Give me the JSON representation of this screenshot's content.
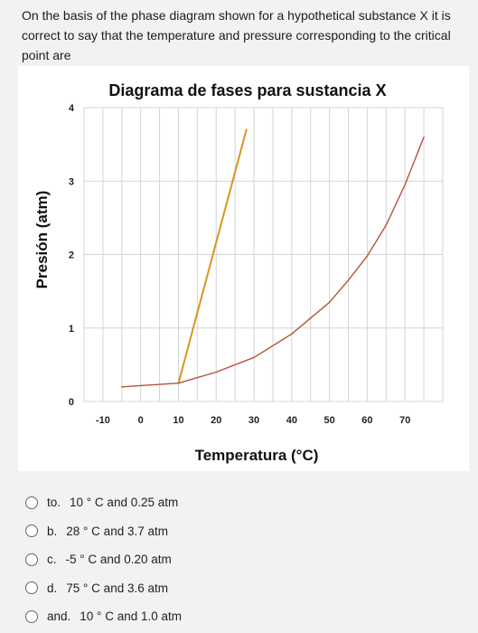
{
  "question": {
    "text": "On the basis of the phase diagram shown for a hypothetical substance X it is correct to say that the temperature and pressure corresponding to the critical point are"
  },
  "chart_data": {
    "type": "line",
    "title": "Diagrama de fases para sustancia X",
    "xlabel": "Temperatura (°C)",
    "ylabel": "Presión (atm)",
    "x_ticks": [
      "-10",
      "0",
      "10",
      "20",
      "30",
      "40",
      "50",
      "60",
      "70"
    ],
    "y_ticks": [
      "0",
      "1",
      "2",
      "3",
      "4"
    ],
    "xlim": [
      -15,
      80
    ],
    "ylim": [
      0,
      4
    ],
    "grid": true,
    "series": [
      {
        "color": "#d9951c",
        "x": [
          10,
          28
        ],
        "y": [
          0.25,
          3.7
        ]
      },
      {
        "color": "#b5523a",
        "x": [
          -5,
          10,
          20,
          30,
          40,
          50,
          55,
          60,
          65,
          70,
          75
        ],
        "y": [
          0.2,
          0.25,
          0.4,
          0.6,
          0.92,
          1.35,
          1.65,
          1.98,
          2.4,
          2.95,
          3.6
        ]
      }
    ]
  },
  "options": [
    {
      "letter": "to.",
      "text": "10 ° C and 0.25 atm"
    },
    {
      "letter": "b.",
      "text": "28 ° C and 3.7 atm"
    },
    {
      "letter": "c.",
      "text": "-5 ° C and 0.20 atm"
    },
    {
      "letter": "d.",
      "text": "75 ° C and 3.6 atm"
    },
    {
      "letter": "and.",
      "text": "10 ° C and 1.0 atm"
    }
  ]
}
